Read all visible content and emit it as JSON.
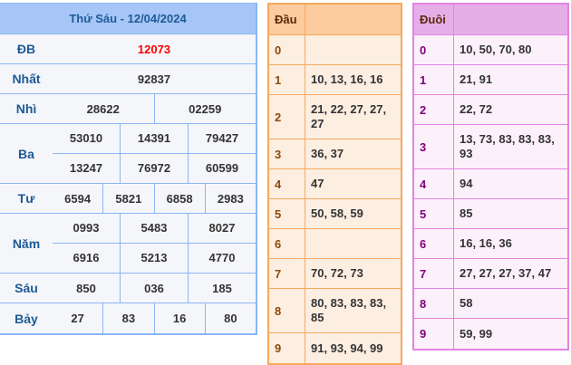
{
  "results": {
    "title": "Thứ Sáu - 12/04/2024",
    "prizes": [
      {
        "label": "ĐB",
        "rows": [
          [
            "12073"
          ]
        ],
        "special": true
      },
      {
        "label": "Nhất",
        "rows": [
          [
            "92837"
          ]
        ]
      },
      {
        "label": "Nhì",
        "rows": [
          [
            "28622",
            "02259"
          ]
        ]
      },
      {
        "label": "Ba",
        "rows": [
          [
            "53010",
            "14391",
            "79427"
          ],
          [
            "13247",
            "76972",
            "60599"
          ]
        ]
      },
      {
        "label": "Tư",
        "rows": [
          [
            "6594",
            "5821",
            "6858",
            "2983"
          ]
        ]
      },
      {
        "label": "Năm",
        "rows": [
          [
            "0993",
            "5483",
            "8027"
          ],
          [
            "6916",
            "5213",
            "4770"
          ]
        ]
      },
      {
        "label": "Sáu",
        "rows": [
          [
            "850",
            "036",
            "185"
          ]
        ]
      },
      {
        "label": "Bảy",
        "rows": [
          [
            "27",
            "83",
            "16",
            "80"
          ]
        ]
      }
    ]
  },
  "dau": {
    "header": "Đầu",
    "rows": [
      {
        "k": "0",
        "v": ""
      },
      {
        "k": "1",
        "v": "10, 13, 16, 16"
      },
      {
        "k": "2",
        "v": "21, 22, 27, 27, 27"
      },
      {
        "k": "3",
        "v": "36, 37"
      },
      {
        "k": "4",
        "v": "47"
      },
      {
        "k": "5",
        "v": "50, 58, 59"
      },
      {
        "k": "6",
        "v": ""
      },
      {
        "k": "7",
        "v": "70, 72, 73"
      },
      {
        "k": "8",
        "v": "80, 83, 83, 83, 85"
      },
      {
        "k": "9",
        "v": "91, 93, 94, 99"
      }
    ]
  },
  "duoi": {
    "header": "Đuôi",
    "rows": [
      {
        "k": "0",
        "v": "10, 50, 70, 80"
      },
      {
        "k": "1",
        "v": "21, 91"
      },
      {
        "k": "2",
        "v": "22, 72"
      },
      {
        "k": "3",
        "v": "13, 73, 83, 83, 83, 93"
      },
      {
        "k": "4",
        "v": "94"
      },
      {
        "k": "5",
        "v": "85"
      },
      {
        "k": "6",
        "v": "16, 16, 36"
      },
      {
        "k": "7",
        "v": "27, 27, 27, 37, 47"
      },
      {
        "k": "8",
        "v": "58"
      },
      {
        "k": "9",
        "v": "59, 99"
      }
    ]
  },
  "colors": {
    "special": "#ff0000",
    "blue_border": "#8ab6f2",
    "orange_border": "#f6a95e",
    "purple_border": "#e383e2"
  }
}
